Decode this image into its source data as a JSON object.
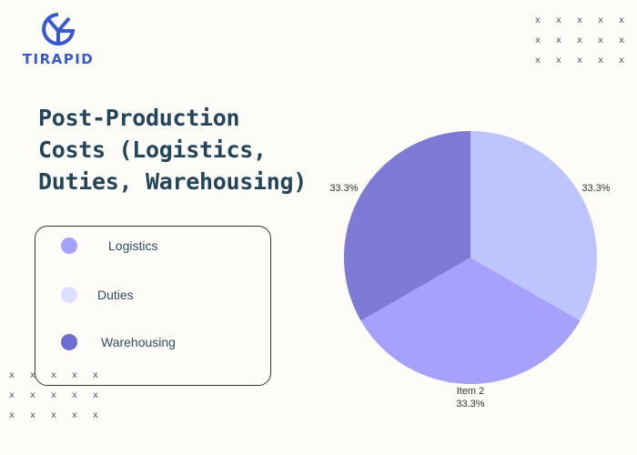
{
  "brand": {
    "name": "TIRAPID",
    "logo_icon": "yg-monogram-icon"
  },
  "title_lines": [
    "Post-Production",
    "Costs (Logistics,",
    "Duties, Warehousing)"
  ],
  "legend": [
    {
      "label": "Logistics",
      "color": "#a8a1fb"
    },
    {
      "label": "Duties",
      "color": "#dde0fd"
    },
    {
      "label": "Warehousing",
      "color": "#6b6fd1"
    }
  ],
  "decor": {
    "mark": "x",
    "color": "#5a5a6a"
  },
  "chart_data": {
    "type": "pie",
    "title": "",
    "slices": [
      {
        "name": "",
        "value": 33.3,
        "label": "33.3%",
        "color": "#bec5fe"
      },
      {
        "name": "Item 2",
        "value": 33.3,
        "label": "33.3%",
        "color": "#a8a1fb"
      },
      {
        "name": "",
        "value": 33.3,
        "label": "33.3%",
        "color": "#7d7bd6"
      }
    ],
    "start_angle_deg": 0,
    "direction": "clockwise",
    "legend_position": "left"
  }
}
